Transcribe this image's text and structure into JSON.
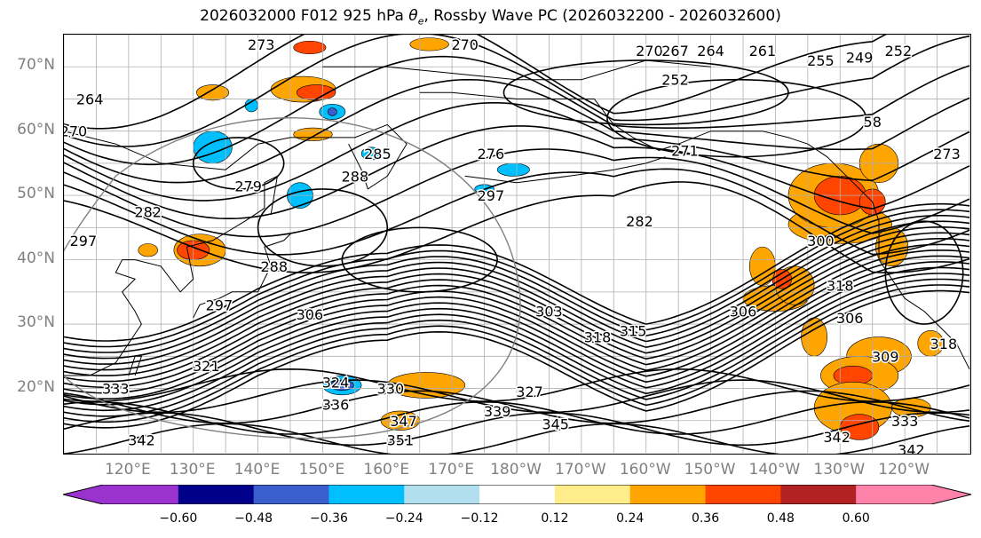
{
  "figure": {
    "title_prefix": "2026032000 F012 925 hPa ",
    "title_symbol": "θ",
    "title_sub": "e",
    "title_suffix": ", Rossby Wave PC (2026032200 - 2026032600)"
  },
  "axes": {
    "lat_labels": [
      "70°N",
      "60°N",
      "50°N",
      "40°N",
      "30°N",
      "20°N"
    ],
    "lon_labels": [
      "120°E",
      "130°E",
      "140°E",
      "150°E",
      "160°E",
      "170°E",
      "180°W",
      "170°W",
      "160°W",
      "150°W",
      "140°W",
      "130°W",
      "120°W"
    ],
    "lat_range": [
      10,
      75
    ],
    "lon_range": [
      110,
      250
    ],
    "gridlines": true
  },
  "colorbar": {
    "ticks": [
      "−0.60",
      "−0.48",
      "−0.36",
      "−0.24",
      "−0.12",
      "0.12",
      "0.24",
      "0.36",
      "0.48",
      "0.60"
    ],
    "colors": [
      "#9a32cd",
      "#00008b",
      "#3a5fcd",
      "#00bfff",
      "#b2dfee",
      "#ffffff",
      "#ffec8b",
      "#ffa500",
      "#ff4500",
      "#b22222",
      "#ff82ab"
    ],
    "extend": "both"
  },
  "contour_labels": [
    {
      "text": "273",
      "lon": 140.5,
      "lat": 73.5
    },
    {
      "text": "270",
      "lon": 172,
      "lat": 73.5
    },
    {
      "text": "270",
      "lon": 200.5,
      "lat": 72.5
    },
    {
      "text": "267",
      "lon": 204.5,
      "lat": 72.5
    },
    {
      "text": "264",
      "lon": 210,
      "lat": 72.5
    },
    {
      "text": "261",
      "lon": 218,
      "lat": 72.5
    },
    {
      "text": "255",
      "lon": 227,
      "lat": 71
    },
    {
      "text": "249",
      "lon": 233,
      "lat": 71.5
    },
    {
      "text": "252",
      "lon": 239,
      "lat": 72.5
    },
    {
      "text": "264",
      "lon": 114,
      "lat": 65
    },
    {
      "text": "252",
      "lon": 204.5,
      "lat": 68
    },
    {
      "text": "58",
      "lon": 235,
      "lat": 61.5
    },
    {
      "text": "270",
      "lon": 111.5,
      "lat": 60
    },
    {
      "text": "285",
      "lon": 158.5,
      "lat": 56.5
    },
    {
      "text": "276",
      "lon": 176,
      "lat": 56.5
    },
    {
      "text": "271",
      "lon": 206,
      "lat": 57
    },
    {
      "text": "273",
      "lon": 246.5,
      "lat": 56.5
    },
    {
      "text": "288",
      "lon": 155,
      "lat": 53
    },
    {
      "text": "279",
      "lon": 138.5,
      "lat": 51.5
    },
    {
      "text": "297",
      "lon": 176,
      "lat": 50
    },
    {
      "text": "282",
      "lon": 123,
      "lat": 47.5
    },
    {
      "text": "282",
      "lon": 199,
      "lat": 46
    },
    {
      "text": "297",
      "lon": 113,
      "lat": 43
    },
    {
      "text": "300",
      "lon": 227,
      "lat": 43
    },
    {
      "text": "288",
      "lon": 142.5,
      "lat": 39
    },
    {
      "text": "318",
      "lon": 230,
      "lat": 36
    },
    {
      "text": "297",
      "lon": 134,
      "lat": 33
    },
    {
      "text": "306",
      "lon": 148,
      "lat": 31.5
    },
    {
      "text": "303",
      "lon": 185,
      "lat": 32
    },
    {
      "text": "306",
      "lon": 215,
      "lat": 32
    },
    {
      "text": "306",
      "lon": 231.5,
      "lat": 31
    },
    {
      "text": "318",
      "lon": 192.5,
      "lat": 28
    },
    {
      "text": "315",
      "lon": 198,
      "lat": 29
    },
    {
      "text": "309",
      "lon": 237,
      "lat": 25
    },
    {
      "text": "318",
      "lon": 246,
      "lat": 27
    },
    {
      "text": "321",
      "lon": 132,
      "lat": 23.5
    },
    {
      "text": "324",
      "lon": 152,
      "lat": 21
    },
    {
      "text": "327",
      "lon": 182,
      "lat": 19.5
    },
    {
      "text": "333",
      "lon": 118,
      "lat": 20
    },
    {
      "text": "330",
      "lon": 160.5,
      "lat": 20
    },
    {
      "text": "336",
      "lon": 152,
      "lat": 17.5
    },
    {
      "text": "339",
      "lon": 177,
      "lat": 16.5
    },
    {
      "text": "347",
      "lon": 162.5,
      "lat": 15
    },
    {
      "text": "345",
      "lon": 186,
      "lat": 14.5
    },
    {
      "text": "351",
      "lon": 162,
      "lat": 12
    },
    {
      "text": "342",
      "lon": 122,
      "lat": 12
    },
    {
      "text": "342",
      "lon": 229.5,
      "lat": 12.5
    },
    {
      "text": "342",
      "lon": 241,
      "lat": 10.5
    },
    {
      "text": "333",
      "lon": 240,
      "lat": 15
    }
  ],
  "shading_patches": [
    {
      "lon": 230,
      "lat": 45.5,
      "rx": 8,
      "ry": 3,
      "color": "#ffa500"
    },
    {
      "lon": 229,
      "lat": 50,
      "rx": 7,
      "ry": 5,
      "color": "#ffa500"
    },
    {
      "lon": 230,
      "lat": 50,
      "rx": 4,
      "ry": 3,
      "color": "#ff4500"
    },
    {
      "lon": 236,
      "lat": 55,
      "rx": 3,
      "ry": 3,
      "color": "#ffa500"
    },
    {
      "lon": 235,
      "lat": 49,
      "rx": 2,
      "ry": 2,
      "color": "#ff4500"
    },
    {
      "lon": 238,
      "lat": 42,
      "rx": 2.5,
      "ry": 3,
      "color": "#ffa500"
    },
    {
      "lon": 220,
      "lat": 34,
      "rx": 5,
      "ry": 2,
      "color": "#ffa500"
    },
    {
      "lon": 223,
      "lat": 36,
      "rx": 3,
      "ry": 3,
      "color": "#ffa500"
    },
    {
      "lon": 221,
      "lat": 37,
      "rx": 1.5,
      "ry": 1.5,
      "color": "#ff4500"
    },
    {
      "lon": 218,
      "lat": 39,
      "rx": 2,
      "ry": 3,
      "color": "#ffa500"
    },
    {
      "lon": 226,
      "lat": 28,
      "rx": 2,
      "ry": 3,
      "color": "#ffa500"
    },
    {
      "lon": 236,
      "lat": 25,
      "rx": 5,
      "ry": 3,
      "color": "#ffa500"
    },
    {
      "lon": 233,
      "lat": 22,
      "rx": 6,
      "ry": 3,
      "color": "#ffa500"
    },
    {
      "lon": 232,
      "lat": 22,
      "rx": 3,
      "ry": 1.5,
      "color": "#ff4500"
    },
    {
      "lon": 232,
      "lat": 17,
      "rx": 6,
      "ry": 4,
      "color": "#ffa500"
    },
    {
      "lon": 233,
      "lat": 14,
      "rx": 3,
      "ry": 2,
      "color": "#ff4500"
    },
    {
      "lon": 241,
      "lat": 17,
      "rx": 3,
      "ry": 1.5,
      "color": "#ffa500"
    },
    {
      "lon": 244,
      "lat": 27,
      "rx": 2,
      "ry": 2,
      "color": "#ffa500"
    },
    {
      "lon": 148,
      "lat": 73,
      "rx": 2.5,
      "ry": 1,
      "color": "#ff4500"
    },
    {
      "lon": 166.5,
      "lat": 73.5,
      "rx": 3,
      "ry": 1,
      "color": "#ffa500"
    },
    {
      "lon": 147,
      "lat": 66.5,
      "rx": 5,
      "ry": 2,
      "color": "#ffa500"
    },
    {
      "lon": 149,
      "lat": 66,
      "rx": 3,
      "ry": 1.2,
      "color": "#ff4500"
    },
    {
      "lon": 133,
      "lat": 66,
      "rx": 2.5,
      "ry": 1.2,
      "color": "#ffa500"
    },
    {
      "lon": 148.5,
      "lat": 59.5,
      "rx": 3,
      "ry": 1,
      "color": "#ffa500"
    },
    {
      "lon": 131,
      "lat": 41.5,
      "rx": 4,
      "ry": 2.5,
      "color": "#ffa500"
    },
    {
      "lon": 130,
      "lat": 41.5,
      "rx": 2.5,
      "ry": 1.5,
      "color": "#ff4500"
    },
    {
      "lon": 123,
      "lat": 41.5,
      "rx": 1.5,
      "ry": 1,
      "color": "#ffa500"
    },
    {
      "lon": 166,
      "lat": 20.5,
      "rx": 6,
      "ry": 2,
      "color": "#ffa500"
    },
    {
      "lon": 162,
      "lat": 15,
      "rx": 3,
      "ry": 1.5,
      "color": "#ffa500"
    },
    {
      "lon": 153,
      "lat": 20.5,
      "rx": 3,
      "ry": 1.5,
      "color": "#00bfff"
    },
    {
      "lon": 153,
      "lat": 20.5,
      "rx": 1.8,
      "ry": 0.8,
      "color": "#3a5fcd"
    },
    {
      "lon": 133,
      "lat": 57.5,
      "rx": 3,
      "ry": 2.5,
      "color": "#00bfff"
    },
    {
      "lon": 139,
      "lat": 64,
      "rx": 1,
      "ry": 1,
      "color": "#00bfff"
    },
    {
      "lon": 151.5,
      "lat": 63,
      "rx": 2,
      "ry": 1.2,
      "color": "#00bfff"
    },
    {
      "lon": 151.5,
      "lat": 63,
      "rx": 0.7,
      "ry": 0.6,
      "color": "#3a5fcd"
    },
    {
      "lon": 146.5,
      "lat": 50,
      "rx": 2,
      "ry": 2,
      "color": "#00bfff"
    },
    {
      "lon": 157.5,
      "lat": 56.5,
      "rx": 1.5,
      "ry": 1,
      "color": "#00bfff"
    },
    {
      "lon": 179.5,
      "lat": 54,
      "rx": 2.5,
      "ry": 1,
      "color": "#00bfff"
    },
    {
      "lon": 175,
      "lat": 51,
      "rx": 1.5,
      "ry": 0.7,
      "color": "#00bfff"
    }
  ]
}
